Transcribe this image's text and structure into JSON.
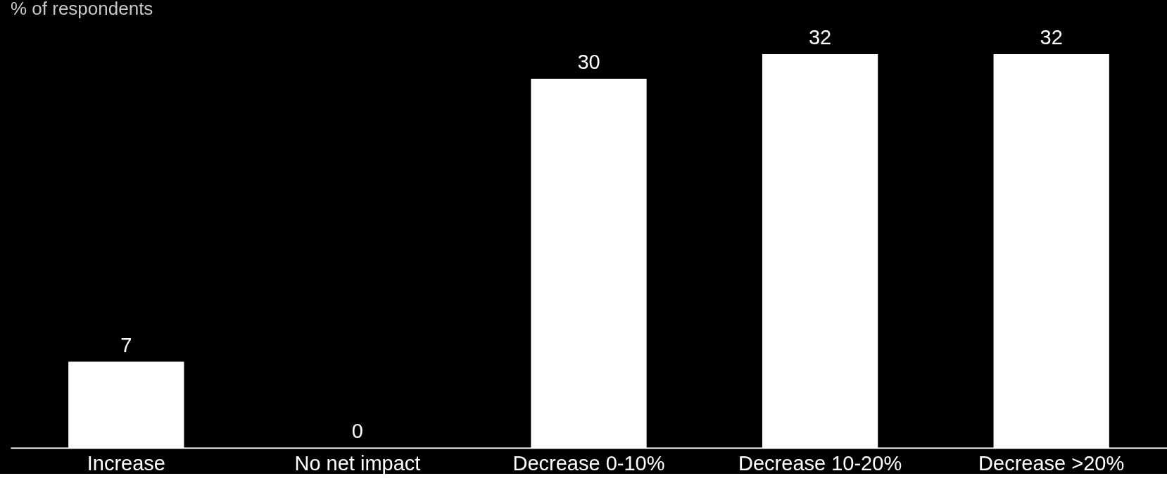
{
  "chart_data": {
    "type": "bar",
    "ylabel": "% of respondents",
    "categories": [
      "Increase",
      "No net impact",
      "Decrease 0-10%",
      "Decrease 10-20%",
      "Decrease >20%"
    ],
    "values": [
      7,
      0,
      30,
      32,
      32
    ],
    "color": "#ffffff",
    "data_labels": true,
    "tick_labels": "x"
  }
}
